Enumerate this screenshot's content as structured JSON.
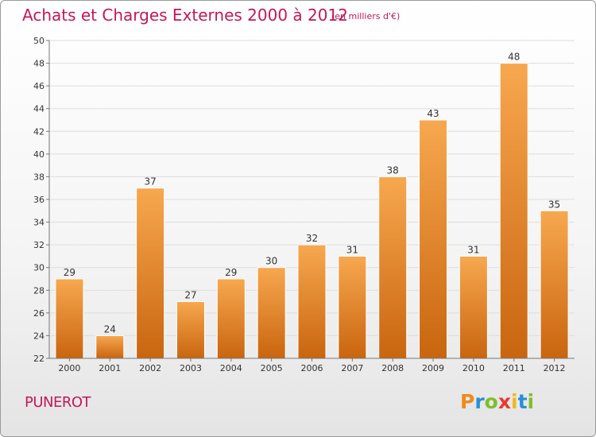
{
  "header": {
    "title": "Achats et Charges Externes 2000 à 2012",
    "subtitle": "(en milliers d'€)"
  },
  "footer": {
    "commune": "PUNEROT",
    "logo_letters": [
      {
        "char": "P",
        "color": "#f08a1c"
      },
      {
        "char": "r",
        "color": "#2a8fd6"
      },
      {
        "char": "o",
        "color": "#7cbf2c"
      },
      {
        "char": "x",
        "color": "#e63b2e"
      },
      {
        "char": "i",
        "color": "#f0b81c"
      },
      {
        "char": "t",
        "color": "#2a8fd6"
      },
      {
        "char": "i",
        "color": "#7cbf2c"
      }
    ]
  },
  "colors": {
    "bar_top": "#f7a84f",
    "bar_bottom": "#c9650f",
    "grid": "#dddddd",
    "axis_text": "#333333",
    "title": "#c2185b"
  },
  "chart_data": {
    "type": "bar",
    "title": "Achats et Charges Externes 2000 à 2012",
    "subtitle": "(en milliers d'€)",
    "categories": [
      "2000",
      "2001",
      "2002",
      "2003",
      "2004",
      "2005",
      "2006",
      "2007",
      "2008",
      "2009",
      "2010",
      "2011",
      "2012"
    ],
    "values": [
      29,
      24,
      37,
      27,
      29,
      30,
      32,
      31,
      38,
      43,
      31,
      48,
      35
    ],
    "ylim": [
      22,
      50
    ],
    "yticks": [
      22,
      24,
      26,
      28,
      30,
      32,
      34,
      36,
      38,
      40,
      42,
      44,
      46,
      48,
      50
    ],
    "grid": true,
    "legend": "none"
  }
}
